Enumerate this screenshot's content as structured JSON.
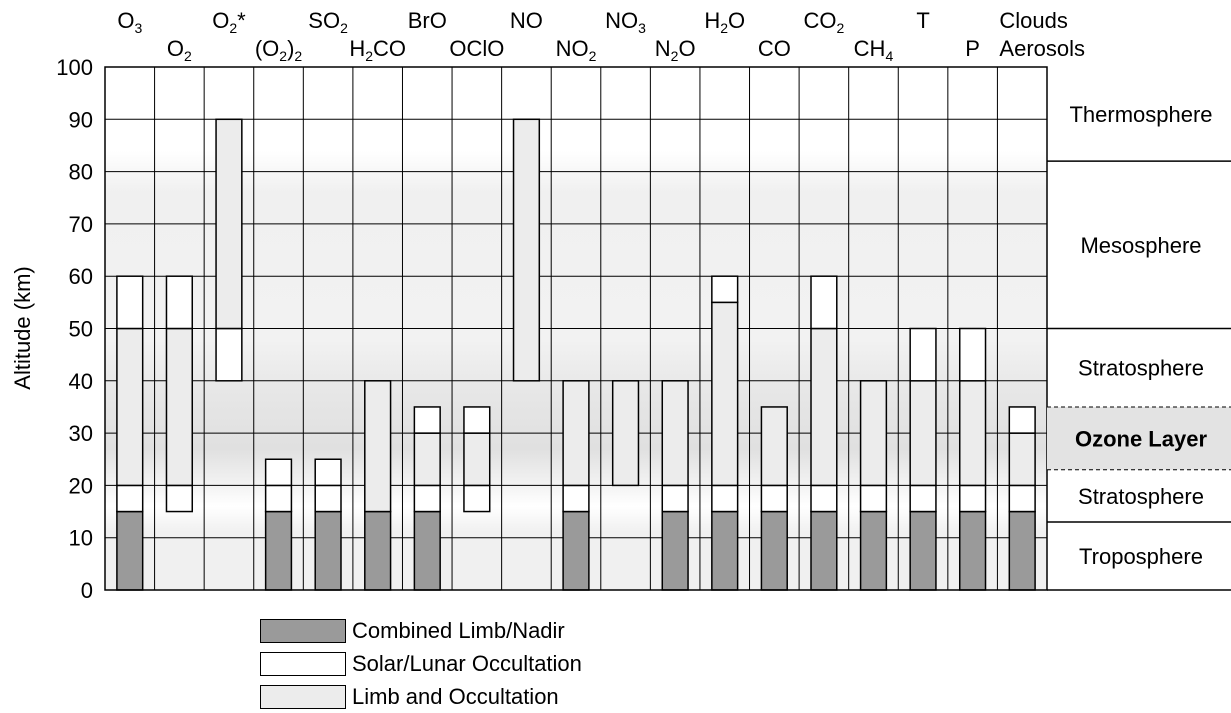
{
  "chart_data": {
    "type": "bar",
    "ylabel": "Altitude (km)",
    "ylim": [
      0,
      100
    ],
    "yticks": [
      0,
      10,
      20,
      30,
      40,
      50,
      60,
      70,
      80,
      90,
      100
    ],
    "grid": true,
    "colors": {
      "combined": "#9a9a9a",
      "solar": "#ffffff",
      "limb": "#ececec",
      "ozone_band": "#e3e3e3"
    },
    "categories": [
      {
        "label": "O",
        "sub": "3",
        "row": 0,
        "label_key": "O3"
      },
      {
        "label": "O",
        "sub": "2",
        "row": 1,
        "label_key": "O2"
      },
      {
        "label": "O",
        "sub": "2",
        "suffix": "*",
        "row": 0,
        "label_key": "O2*"
      },
      {
        "label": "(O",
        "sub": "2",
        "suffix": ")",
        "sub2": "2",
        "row": 1,
        "label_key": "(O2)2"
      },
      {
        "label": "SO",
        "sub": "2",
        "row": 0,
        "label_key": "SO2"
      },
      {
        "label": "H",
        "sub": "2",
        "suffix": "CO",
        "row": 1,
        "label_key": "H2CO"
      },
      {
        "label": "BrO",
        "row": 0,
        "label_key": "BrO"
      },
      {
        "label": "OClO",
        "row": 1,
        "label_key": "OClO"
      },
      {
        "label": "NO",
        "row": 0,
        "label_key": "NO"
      },
      {
        "label": "NO",
        "sub": "2",
        "row": 1,
        "label_key": "NO2"
      },
      {
        "label": "NO",
        "sub": "3",
        "row": 0,
        "label_key": "NO3"
      },
      {
        "label": "N",
        "sub": "2",
        "suffix": "O",
        "row": 1,
        "label_key": "N2O"
      },
      {
        "label": "H",
        "sub": "2",
        "suffix": "O",
        "row": 0,
        "label_key": "H2O"
      },
      {
        "label": "CO",
        "row": 1,
        "label_key": "CO"
      },
      {
        "label": "CO",
        "sub": "2",
        "row": 0,
        "label_key": "CO2"
      },
      {
        "label": "CH",
        "sub": "4",
        "row": 1,
        "label_key": "CH4"
      },
      {
        "label": "T",
        "row": 0,
        "label_key": "T"
      },
      {
        "label": "P",
        "row": 1,
        "label_key": "P"
      },
      {
        "label": "Clouds",
        "label2": "Aerosols",
        "row": 0,
        "label_key": "Clouds Aerosols"
      }
    ],
    "bars": [
      {
        "name": "O3",
        "segments": [
          [
            0,
            15,
            "combined"
          ],
          [
            15,
            20,
            "solar"
          ],
          [
            20,
            50,
            "limb"
          ],
          [
            50,
            60,
            "solar"
          ]
        ]
      },
      {
        "name": "O2",
        "segments": [
          [
            15,
            20,
            "solar"
          ],
          [
            20,
            50,
            "limb"
          ],
          [
            50,
            60,
            "solar"
          ]
        ]
      },
      {
        "name": "O2*",
        "segments": [
          [
            40,
            50,
            "solar"
          ],
          [
            50,
            90,
            "limb"
          ]
        ]
      },
      {
        "name": "(O2)2",
        "segments": [
          [
            0,
            15,
            "combined"
          ],
          [
            15,
            20,
            "solar"
          ],
          [
            20,
            25,
            "solar"
          ]
        ]
      },
      {
        "name": "SO2",
        "segments": [
          [
            0,
            15,
            "combined"
          ],
          [
            15,
            20,
            "solar"
          ],
          [
            20,
            25,
            "solar"
          ]
        ]
      },
      {
        "name": "H2CO",
        "segments": [
          [
            0,
            15,
            "combined"
          ],
          [
            15,
            40,
            "limb"
          ]
        ]
      },
      {
        "name": "BrO",
        "segments": [
          [
            0,
            15,
            "combined"
          ],
          [
            15,
            20,
            "solar"
          ],
          [
            20,
            30,
            "limb"
          ],
          [
            30,
            35,
            "solar"
          ]
        ]
      },
      {
        "name": "OClO",
        "segments": [
          [
            15,
            20,
            "solar"
          ],
          [
            20,
            30,
            "limb"
          ],
          [
            30,
            35,
            "solar"
          ]
        ]
      },
      {
        "name": "NO",
        "segments": [
          [
            40,
            90,
            "limb"
          ]
        ]
      },
      {
        "name": "NO2",
        "segments": [
          [
            0,
            15,
            "combined"
          ],
          [
            15,
            20,
            "solar"
          ],
          [
            20,
            40,
            "limb"
          ]
        ]
      },
      {
        "name": "NO3",
        "segments": [
          [
            20,
            40,
            "limb"
          ]
        ]
      },
      {
        "name": "N2O",
        "segments": [
          [
            0,
            15,
            "combined"
          ],
          [
            15,
            20,
            "solar"
          ],
          [
            20,
            40,
            "limb"
          ]
        ]
      },
      {
        "name": "H2O",
        "segments": [
          [
            0,
            15,
            "combined"
          ],
          [
            15,
            20,
            "solar"
          ],
          [
            20,
            55,
            "limb"
          ],
          [
            55,
            60,
            "solar"
          ]
        ]
      },
      {
        "name": "CO",
        "segments": [
          [
            0,
            15,
            "combined"
          ],
          [
            15,
            20,
            "solar"
          ],
          [
            20,
            35,
            "limb"
          ]
        ]
      },
      {
        "name": "CO2",
        "segments": [
          [
            0,
            15,
            "combined"
          ],
          [
            15,
            20,
            "solar"
          ],
          [
            20,
            50,
            "limb"
          ],
          [
            50,
            60,
            "solar"
          ]
        ]
      },
      {
        "name": "CH4",
        "segments": [
          [
            0,
            15,
            "combined"
          ],
          [
            15,
            20,
            "solar"
          ],
          [
            20,
            40,
            "limb"
          ]
        ]
      },
      {
        "name": "T",
        "segments": [
          [
            0,
            15,
            "combined"
          ],
          [
            15,
            20,
            "solar"
          ],
          [
            20,
            40,
            "limb"
          ],
          [
            40,
            50,
            "solar"
          ]
        ]
      },
      {
        "name": "P",
        "segments": [
          [
            0,
            15,
            "combined"
          ],
          [
            15,
            20,
            "solar"
          ],
          [
            20,
            40,
            "limb"
          ],
          [
            40,
            50,
            "solar"
          ]
        ]
      },
      {
        "name": "Clouds Aerosols",
        "segments": [
          [
            0,
            15,
            "combined"
          ],
          [
            15,
            20,
            "solar"
          ],
          [
            20,
            30,
            "limb"
          ],
          [
            30,
            35,
            "solar"
          ]
        ]
      }
    ],
    "layers": [
      {
        "label": "Thermosphere",
        "from": 82,
        "to": 100,
        "bold": false,
        "shaded": false
      },
      {
        "label": "Mesosphere",
        "from": 50,
        "to": 82,
        "bold": false,
        "shaded": false
      },
      {
        "label": "Stratosphere",
        "from": 35,
        "to": 50,
        "bold": false,
        "shaded": false
      },
      {
        "label": "Ozone Layer",
        "from": 23,
        "to": 35,
        "bold": true,
        "shaded": true
      },
      {
        "label": "Stratosphere",
        "from": 13,
        "to": 23,
        "bold": false,
        "shaded": false
      },
      {
        "label": "Troposphere",
        "from": 0,
        "to": 13,
        "bold": false,
        "shaded": false
      }
    ],
    "legend": [
      {
        "key": "combined",
        "label": "Combined Limb/Nadir"
      },
      {
        "key": "solar",
        "label": "Solar/Lunar Occultation"
      },
      {
        "key": "limb",
        "label": "Limb and Occultation"
      }
    ]
  }
}
